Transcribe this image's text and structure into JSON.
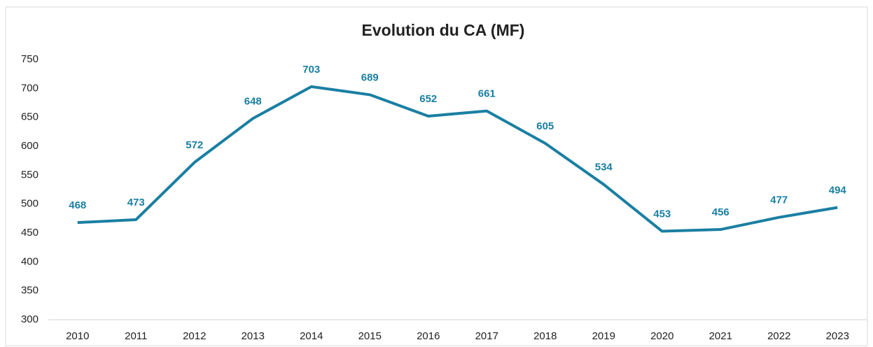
{
  "chart_data": {
    "type": "line",
    "title": "Evolution du CA (MF)",
    "categories": [
      "2010",
      "2011",
      "2012",
      "2013",
      "2014",
      "2015",
      "2016",
      "2017",
      "2018",
      "2019",
      "2020",
      "2021",
      "2022",
      "2023"
    ],
    "values": [
      468,
      473,
      572,
      648,
      703,
      689,
      652,
      661,
      605,
      534,
      453,
      456,
      477,
      494
    ],
    "color": "#1a7fa2",
    "ylim": [
      300,
      750
    ],
    "yticks": [
      300,
      350,
      400,
      450,
      500,
      550,
      600,
      650,
      700,
      750
    ],
    "grid": false,
    "data_labels": true
  }
}
